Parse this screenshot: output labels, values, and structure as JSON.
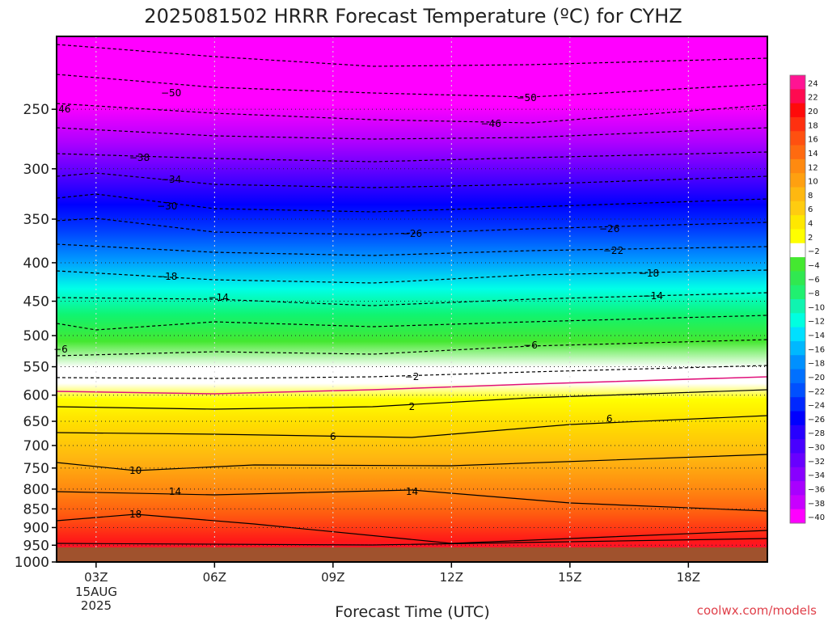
{
  "title": "2025081502 HRRR Forecast Temperature (ºC) for CYHZ",
  "xlabel": "Forecast Time (UTC)",
  "credit": "coolwx.com/models",
  "x_date_label": [
    "15AUG",
    "2025"
  ],
  "chart_data": {
    "type": "heatmap",
    "title": "2025081502 HRRR Forecast Temperature (ºC) for CYHZ",
    "xlabel": "Forecast Time (UTC)",
    "ylabel": "",
    "x_ticks": [
      "03Z",
      "06Z",
      "09Z",
      "12Z",
      "15Z",
      "18Z"
    ],
    "x_tick_hours": [
      3,
      6,
      9,
      12,
      15,
      18
    ],
    "xlim_hours": [
      2,
      20
    ],
    "y_ticks": [
      250,
      300,
      350,
      400,
      450,
      500,
      550,
      600,
      650,
      700,
      750,
      800,
      850,
      900,
      950,
      1000
    ],
    "ylim": [
      200,
      1000
    ],
    "y_scale": "log",
    "grid": true,
    "colorbar": {
      "labels": [
        24,
        22,
        20,
        18,
        16,
        14,
        12,
        10,
        8,
        6,
        4,
        2,
        -2,
        -4,
        -6,
        -8,
        -10,
        -12,
        -14,
        -16,
        -18,
        -20,
        -22,
        -24,
        -26,
        -28,
        -30,
        -32,
        -34,
        -36,
        -38,
        -40
      ],
      "colors": [
        "#ff1493",
        "#ff0a50",
        "#ff0a0a",
        "#ff3010",
        "#ff5010",
        "#ff6a10",
        "#ff8a10",
        "#ffa010",
        "#ffb810",
        "#ffcc10",
        "#ffe800",
        "#ffff00",
        "#ffffff",
        "#44e830",
        "#30e850",
        "#20f070",
        "#10f4b0",
        "#00ffe0",
        "#00e0ff",
        "#00b8ff",
        "#0090ff",
        "#0070ff",
        "#0050ff",
        "#0028ff",
        "#0000ff",
        "#2800ff",
        "#4800ff",
        "#6800ff",
        "#8800ff",
        "#a800ff",
        "#c800ff",
        "#ff00ff"
      ]
    },
    "contour_labels": [
      {
        "value": "-50",
        "hours": [
          4.9,
          13.9
        ]
      },
      {
        "value": "-46",
        "hours": [
          2.1,
          13.0
        ]
      },
      {
        "value": "-38",
        "hours": [
          4.1
        ]
      },
      {
        "value": "-34",
        "hours": [
          4.9
        ]
      },
      {
        "value": "-30",
        "hours": [
          4.8
        ]
      },
      {
        "value": "-26",
        "hours": [
          11.0,
          16.0
        ]
      },
      {
        "value": "-22",
        "hours": [
          16.1
        ]
      },
      {
        "value": "-18",
        "hours": [
          4.8,
          17.0
        ]
      },
      {
        "value": "-14",
        "hours": [
          6.1,
          17.1
        ]
      },
      {
        "value": "-6",
        "hours": [
          2.1,
          14.0
        ]
      },
      {
        "value": "-2",
        "hours": [
          11.0
        ]
      },
      {
        "value": "2",
        "hours": [
          11.0
        ]
      },
      {
        "value": "6",
        "hours": [
          9.0,
          16.0
        ]
      },
      {
        "value": "10",
        "hours": [
          4.0
        ]
      },
      {
        "value": "14",
        "hours": [
          5.0,
          11.0
        ]
      },
      {
        "value": "18",
        "hours": [
          4.0
        ]
      }
    ]
  }
}
